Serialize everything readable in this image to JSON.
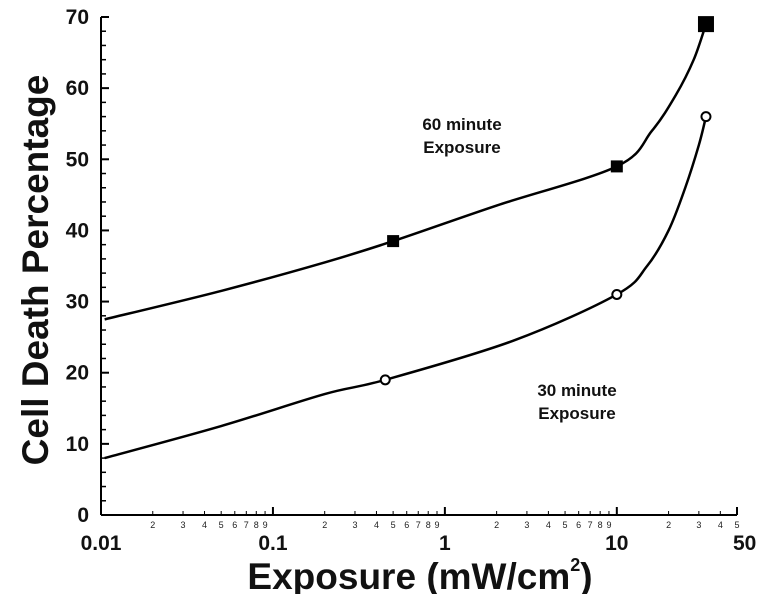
{
  "chart_data": {
    "type": "line",
    "xlabel": "Exposure (mW/cm",
    "xlabel_superscript": "2",
    "xlabel_close": ")",
    "ylabel": "Cell Death Percentage",
    "x_scale": "log",
    "xlim": [
      0.01,
      50
    ],
    "ylim": [
      0,
      70
    ],
    "x_major_ticks": [
      {
        "value": 0.01,
        "label": "0.01"
      },
      {
        "value": 0.1,
        "label": "0.1"
      },
      {
        "value": 1,
        "label": "1"
      },
      {
        "value": 10,
        "label": "10"
      },
      {
        "value": 50,
        "label": "50"
      }
    ],
    "x_minor_ticks": [
      2,
      3,
      4,
      5,
      6,
      7,
      8,
      9
    ],
    "y_ticks": [
      0,
      10,
      20,
      30,
      40,
      50,
      60,
      70
    ],
    "grid": false,
    "series": [
      {
        "marker": "square",
        "color": "#000000",
        "points": [
          {
            "x": 0.5,
            "y": 38.5
          },
          {
            "x": 10,
            "y": 49
          },
          {
            "x": 33,
            "y": 69
          }
        ],
        "curve": [
          [
            0.0105,
            27.5
          ],
          [
            0.05,
            31.5
          ],
          [
            0.2,
            35.5
          ],
          [
            0.5,
            38.5
          ],
          [
            2,
            43.5
          ],
          [
            10,
            49
          ],
          [
            16,
            54
          ],
          [
            22,
            59
          ],
          [
            28,
            64
          ],
          [
            33,
            69
          ]
        ]
      },
      {
        "marker": "circle-open",
        "color": "#000000",
        "points": [
          {
            "x": 0.45,
            "y": 19
          },
          {
            "x": 10,
            "y": 31
          },
          {
            "x": 33,
            "y": 56
          }
        ],
        "curve": [
          [
            0.0105,
            8
          ],
          [
            0.05,
            12.5
          ],
          [
            0.2,
            17
          ],
          [
            0.45,
            19
          ],
          [
            2.5,
            24.5
          ],
          [
            10,
            31
          ],
          [
            15,
            35
          ],
          [
            20,
            40
          ],
          [
            25,
            46
          ],
          [
            30,
            52
          ],
          [
            33,
            56
          ]
        ]
      }
    ],
    "annotations": [
      {
        "lines": [
          "60 minute",
          "Exposure"
        ]
      },
      {
        "lines": [
          "30 minute",
          "Exposure"
        ]
      }
    ]
  }
}
